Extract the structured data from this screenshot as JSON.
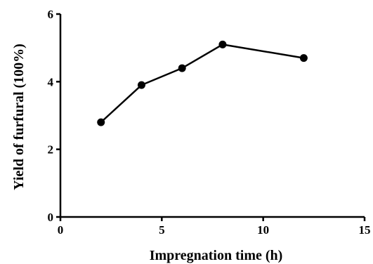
{
  "chart_data": {
    "type": "line",
    "title": "",
    "xlabel": "Impregnation time (h)",
    "ylabel": "Yield of furfural (100%)",
    "xlim": [
      0,
      15
    ],
    "ylim": [
      0,
      6
    ],
    "xticks": [
      0,
      5,
      10,
      15
    ],
    "yticks": [
      0,
      2,
      4,
      6
    ],
    "xtick_labels": [
      "0",
      "5",
      "10",
      "15"
    ],
    "ytick_labels": [
      "0",
      "2",
      "4",
      "6"
    ],
    "grid": false,
    "legend": "none",
    "series": [
      {
        "x": [
          2,
          4,
          6,
          8,
          12
        ],
        "y": [
          2.8,
          3.9,
          4.4,
          5.1,
          4.7
        ],
        "color": "#000000",
        "marker": "circle"
      }
    ]
  }
}
